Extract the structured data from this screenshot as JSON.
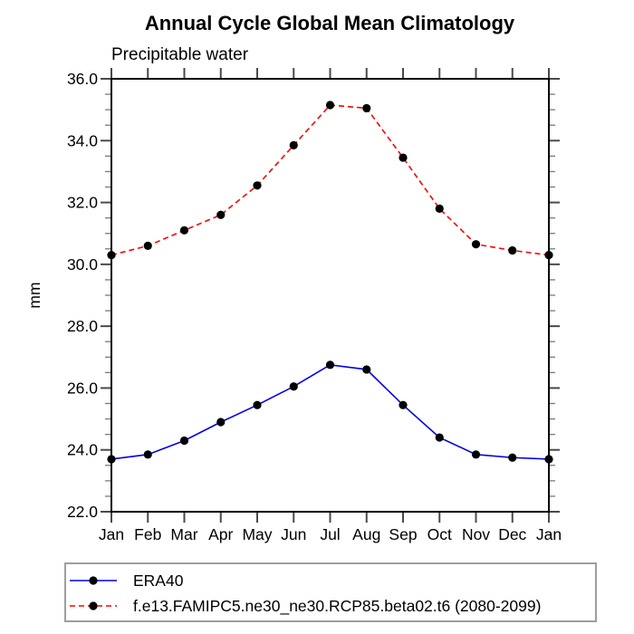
{
  "chart_data": {
    "type": "line",
    "title": "Annual Cycle Global Mean Climatology",
    "subtitle": "Precipitable water",
    "ylabel": "mm",
    "xlabel": "",
    "ylim": [
      22.0,
      36.0
    ],
    "y_major_tick_step": 2.0,
    "y_minor_tick_step": 0.5,
    "y_tick_labels": [
      "22.0",
      "24.0",
      "26.0",
      "28.0",
      "30.0",
      "32.0",
      "34.0",
      "36.0"
    ],
    "categories": [
      "Jan",
      "Feb",
      "Mar",
      "Apr",
      "May",
      "Jun",
      "Jul",
      "Aug",
      "Sep",
      "Oct",
      "Nov",
      "Dec",
      "Jan"
    ],
    "series": [
      {
        "name": "ERA40",
        "color": "#0000ee",
        "line_style": "solid",
        "marker": "filled-circle",
        "marker_color": "#000000",
        "values": [
          23.7,
          23.85,
          24.3,
          24.9,
          25.45,
          26.05,
          26.75,
          26.6,
          25.45,
          24.4,
          23.85,
          23.75,
          23.7
        ]
      },
      {
        "name": "f.e13.FAMIPC5.ne30_ne30.RCP85.beta02.t6 (2080-2099)",
        "color": "#ff0000",
        "line_style": "dashed",
        "marker": "filled-circle",
        "marker_color": "#000000",
        "values": [
          30.3,
          30.6,
          31.1,
          31.6,
          32.55,
          33.85,
          35.15,
          35.05,
          33.45,
          31.8,
          30.65,
          30.45,
          30.3
        ]
      }
    ],
    "legend_position": "bottom-left-box",
    "grid": false,
    "colors": {
      "frame": "#000000",
      "major_tick": "#4a4a4a",
      "minor_tick": "#7a7a7a",
      "legend_border": "#9e9e9e",
      "background": "#ffffff",
      "text": "#000000"
    }
  }
}
